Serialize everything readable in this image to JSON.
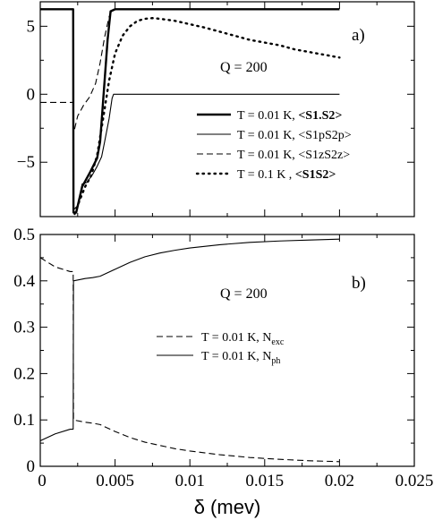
{
  "figure": {
    "xlabel": "δ  (mev)"
  },
  "chart_data": [
    {
      "type": "line",
      "panel_label": "a)",
      "annotation": "Q = 200",
      "xlim": [
        0,
        0.025
      ],
      "ylim": [
        -9,
        6.8
      ],
      "yticks": [
        5,
        0,
        -5
      ],
      "ytick_labels": [
        "5",
        "0",
        "−5"
      ],
      "xticks": [
        0,
        0.005,
        0.01,
        0.015,
        0.02,
        0.025
      ],
      "xtick_labels_shown": false,
      "grid": false,
      "legend_position": "lower-right",
      "series": [
        {
          "id": "s1s2_001",
          "name": "T = 0.01 K,  <S1.S2>",
          "legend_main": "T = 0.01 K,  ",
          "legend_expr": "<S1.S2>",
          "style": "solid-thick",
          "x": [
            0,
            0.0022,
            0.00222,
            0.0024,
            0.0028,
            0.0033,
            0.0038,
            0.004,
            0.0043,
            0.0045,
            0.0047,
            0.005,
            0.01,
            0.015,
            0.02
          ],
          "y": [
            6.25,
            6.25,
            -8.7,
            -8.7,
            -6.8,
            -5.8,
            -4.7,
            -3.5,
            1.0,
            4.0,
            6.1,
            6.25,
            6.25,
            6.25,
            6.25
          ]
        },
        {
          "id": "s1ps2p_001",
          "name": "T = 0.01 K,  <S1pS2p>",
          "legend_main": "T = 0.01 K,  ",
          "legend_expr": "<S1pS2p>",
          "style": "solid-thin",
          "x": [
            0,
            0.0022,
            0.00222,
            0.0025,
            0.0028,
            0.0031,
            0.0035,
            0.0038,
            0.0041,
            0.0043,
            0.0046,
            0.0048,
            0.0049,
            0.005,
            0.01,
            0.015,
            0.02
          ],
          "y": [
            6.25,
            6.25,
            -8.5,
            -8.2,
            -6.6,
            -6.5,
            -5.9,
            -5.3,
            -4.6,
            -3.5,
            -1.8,
            -0.3,
            0.0,
            0.0,
            0.0,
            0.0,
            0.0
          ],
          "x2": [
            0.0022,
            0.00222
          ],
          "y2": [
            6.25,
            6.25
          ]
        },
        {
          "id": "s1zs2z_001",
          "name": "T = 0.01 K,  <S1zS2z>",
          "legend_main": "T = 0.01 K,  ",
          "legend_expr": "<S1zS2z>",
          "style": "dashed",
          "x": [
            0,
            0.0022,
            0.00222,
            0.0025,
            0.0029,
            0.0033,
            0.0037,
            0.004,
            0.0043,
            0.0046,
            0.0048,
            0.005,
            0.01,
            0.015,
            0.02
          ],
          "y": [
            -0.6,
            -0.6,
            -2.9,
            -1.6,
            -0.8,
            -0.2,
            0.8,
            2.3,
            4.2,
            5.7,
            6.2,
            6.25,
            6.25,
            6.25,
            6.25
          ]
        },
        {
          "id": "s1s2_01",
          "name": "T = 0.1 K ,  <S1S2>",
          "legend_main": "T = 0.1 K ,  ",
          "legend_expr": "<S1S2>",
          "style": "dotted",
          "x": [
            0.0023,
            0.0026,
            0.003,
            0.0034,
            0.0038,
            0.0042,
            0.0046,
            0.005,
            0.0055,
            0.006,
            0.0065,
            0.007,
            0.0075,
            0.008,
            0.009,
            0.01,
            0.011,
            0.012,
            0.013,
            0.014,
            0.015,
            0.016,
            0.017,
            0.018,
            0.019,
            0.02
          ],
          "y": [
            -8.8,
            -7.9,
            -6.8,
            -6.0,
            -4.5,
            -1.8,
            1.0,
            3.0,
            4.3,
            5.0,
            5.4,
            5.55,
            5.6,
            5.55,
            5.4,
            5.15,
            4.9,
            4.6,
            4.3,
            4.0,
            3.8,
            3.6,
            3.3,
            3.1,
            2.9,
            2.7
          ]
        }
      ]
    },
    {
      "type": "line",
      "panel_label": "b)",
      "annotation": "Q = 200",
      "xlim": [
        0,
        0.025
      ],
      "ylim": [
        0,
        0.5
      ],
      "yticks": [
        0,
        0.1,
        0.2,
        0.3,
        0.4,
        0.5
      ],
      "ytick_labels": [
        "0",
        "0.1",
        "0.2",
        "0.3",
        "0.4",
        "0.5"
      ],
      "xticks": [
        0,
        0.005,
        0.01,
        0.015,
        0.02,
        0.025
      ],
      "xtick_labels": [
        "0",
        "0.005",
        "0.01",
        "0.015",
        "0.02",
        "0.025"
      ],
      "grid": false,
      "legend_position": "center-right",
      "series": [
        {
          "id": "nexc",
          "name": "T = 0.01 K, Nexc",
          "legend_main": "T = 0.01 K, N",
          "legend_sub": "exc",
          "style": "dashed",
          "x": [
            0,
            0.001,
            0.002,
            0.0022,
            0.00222,
            0.003,
            0.0035,
            0.004,
            0.005,
            0.006,
            0.007,
            0.008,
            0.009,
            0.01,
            0.012,
            0.014,
            0.016,
            0.018,
            0.02
          ],
          "y": [
            0.45,
            0.43,
            0.42,
            0.42,
            0.1,
            0.095,
            0.093,
            0.09,
            0.075,
            0.062,
            0.052,
            0.045,
            0.038,
            0.033,
            0.025,
            0.019,
            0.015,
            0.012,
            0.01
          ]
        },
        {
          "id": "nph",
          "name": "T = 0.01 K, Nph",
          "legend_main": "T = 0.01 K, N",
          "legend_sub": "ph",
          "style": "solid-thin",
          "x": [
            0,
            0.001,
            0.002,
            0.0022,
            0.00222,
            0.003,
            0.0035,
            0.004,
            0.005,
            0.006,
            0.007,
            0.008,
            0.009,
            0.01,
            0.012,
            0.014,
            0.016,
            0.018,
            0.02
          ],
          "y": [
            0.055,
            0.07,
            0.08,
            0.08,
            0.4,
            0.405,
            0.407,
            0.41,
            0.425,
            0.44,
            0.452,
            0.46,
            0.466,
            0.471,
            0.478,
            0.483,
            0.486,
            0.488,
            0.49
          ]
        }
      ]
    }
  ]
}
